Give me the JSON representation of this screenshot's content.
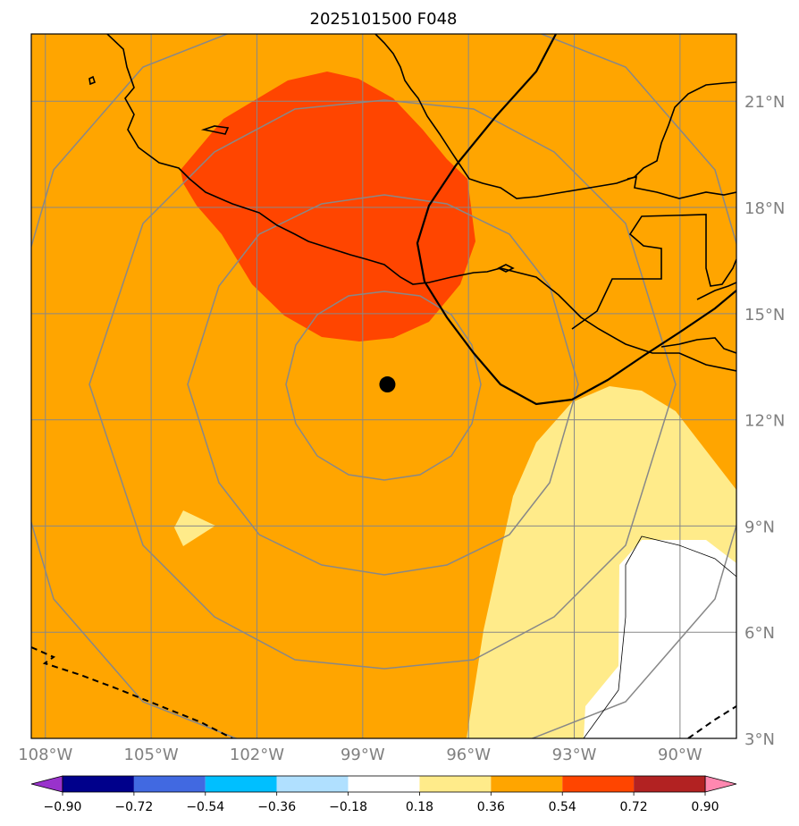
{
  "chart_data": {
    "type": "map",
    "title": "2025101500 F048",
    "extent": {
      "lon_min": -108.4,
      "lon_max": -88.4,
      "lat_min": 3.0,
      "lat_max": 22.9
    },
    "lon_ticks": [
      {
        "value": -108,
        "label": "108°W"
      },
      {
        "value": -105,
        "label": "105°W"
      },
      {
        "value": -102,
        "label": "102°W"
      },
      {
        "value": -99,
        "label": "99°W"
      },
      {
        "value": -96,
        "label": "96°W"
      },
      {
        "value": -93,
        "label": "93°W"
      },
      {
        "value": -90,
        "label": "90°W"
      }
    ],
    "lat_ticks": [
      {
        "value": 3,
        "label": "3°N"
      },
      {
        "value": 6,
        "label": "6°N"
      },
      {
        "value": 9,
        "label": "9°N"
      },
      {
        "value": 12,
        "label": "12°N"
      },
      {
        "value": 15,
        "label": "15°N"
      },
      {
        "value": 18,
        "label": "18°N"
      },
      {
        "value": 21,
        "label": "21°N"
      }
    ],
    "center_marker": {
      "lon": -98.3,
      "lat": 13.0
    },
    "colorbar": {
      "boundaries": [
        -0.9,
        -0.72,
        -0.54,
        -0.36,
        -0.18,
        0.18,
        0.36,
        0.54,
        0.72,
        0.9
      ],
      "labels": [
        "−0.90",
        "−0.72",
        "−0.54",
        "−0.36",
        "−0.18",
        "0.18",
        "0.36",
        "0.54",
        "0.72",
        "0.90"
      ],
      "colors": [
        "#9932cc",
        "#00008b",
        "#4169e1",
        "#00bfff",
        "#b0e0ff",
        "#ffffff",
        "#ffeb8a",
        "#ffa500",
        "#ff4500",
        "#b22222",
        "#ff88b0"
      ]
    }
  }
}
